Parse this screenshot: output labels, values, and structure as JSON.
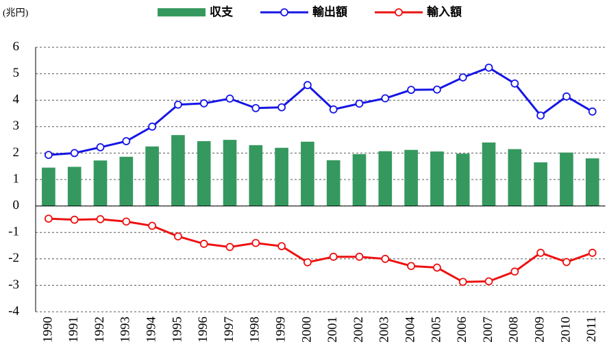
{
  "chart_data": {
    "type": "bar_line",
    "unit_label": "(兆円)",
    "categories": [
      "1990",
      "1991",
      "1992",
      "1993",
      "1994",
      "1995",
      "1996",
      "1997",
      "1998",
      "1999",
      "2000",
      "2001",
      "2002",
      "2003",
      "2004",
      "2005",
      "2006",
      "2007",
      "2008",
      "2009",
      "2010",
      "2011"
    ],
    "series": [
      {
        "name": "収支",
        "type": "bar",
        "color": "#35995f",
        "values": [
          1.45,
          1.48,
          1.72,
          1.86,
          2.25,
          2.68,
          2.45,
          2.5,
          2.3,
          2.2,
          2.43,
          1.73,
          1.96,
          2.07,
          2.12,
          2.06,
          1.98,
          2.4,
          2.15,
          1.65,
          2.02,
          1.8
        ]
      },
      {
        "name": "輸出額",
        "type": "line",
        "color": "#1515e6",
        "values": [
          1.93,
          2.0,
          2.22,
          2.45,
          3.0,
          3.83,
          3.88,
          4.06,
          3.7,
          3.73,
          4.57,
          3.65,
          3.87,
          4.07,
          4.39,
          4.4,
          4.86,
          5.23,
          4.63,
          3.42,
          4.14,
          3.57
        ]
      },
      {
        "name": "輸入額",
        "type": "line",
        "color": "#ee1111",
        "values": [
          -0.48,
          -0.52,
          -0.5,
          -0.59,
          -0.75,
          -1.15,
          -1.43,
          -1.55,
          -1.4,
          -1.52,
          -2.13,
          -1.92,
          -1.92,
          -2.0,
          -2.27,
          -2.33,
          -2.87,
          -2.85,
          -2.48,
          -1.77,
          -2.12,
          -1.77
        ]
      }
    ],
    "ylim": [
      -4,
      6
    ],
    "yticks": [
      -4,
      -3,
      -2,
      -1,
      0,
      1,
      2,
      3,
      4,
      5,
      6
    ],
    "grid": true,
    "legend": "top"
  }
}
